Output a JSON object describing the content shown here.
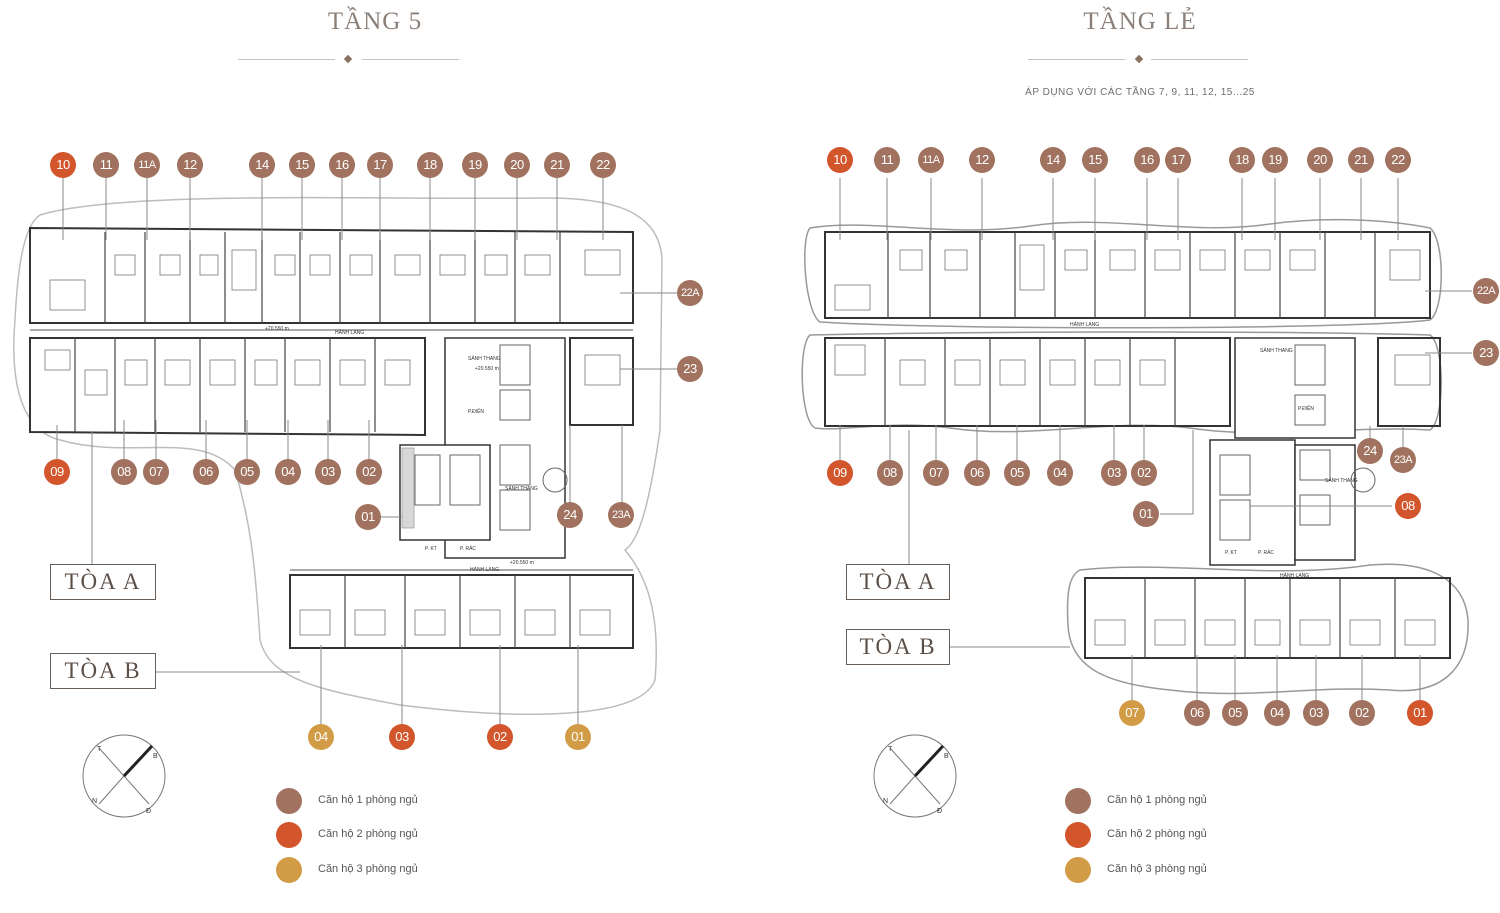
{
  "colors": {
    "one_bedroom": "#a0725f",
    "two_bedroom": "#d2552b",
    "three_bedroom": "#d29c46",
    "title": "#8b7f78",
    "plan_lines": "#3a3a3a",
    "outline": "#b8b8b8"
  },
  "left": {
    "title": "TẦNG 5",
    "tower_a": "TÒA A",
    "tower_b": "TÒA B",
    "plan_labels": {
      "corridor_a": "HÀNH LANG",
      "corridor_b": "HÀNH LANG",
      "lift_lobby": "SẢNH THANG",
      "lift_lobby_2": "SẢNH THANG",
      "kt": "P. KT",
      "rac": "P. RÁC",
      "dien": "P.ĐIỆN",
      "elev_1": "+20.550 m",
      "elev_2": "+20.550 m",
      "elev_3": "+20.550 m"
    },
    "units_a_top": [
      "10",
      "11",
      "11A",
      "12",
      "14",
      "15",
      "16",
      "17",
      "18",
      "19",
      "20",
      "21",
      "22"
    ],
    "units_a_right": [
      "22A",
      "23"
    ],
    "units_a_bottom": [
      "09",
      "08",
      "07",
      "06",
      "05",
      "04",
      "03",
      "02"
    ],
    "units_a_core": [
      "01",
      "24",
      "23A"
    ],
    "units_b": [
      "04",
      "03",
      "02",
      "01"
    ]
  },
  "right": {
    "title": "TẦNG LẺ",
    "subtitle": "ÁP DỤNG VỚI CÁC TẦNG 7, 9, 11, 12, 15...25",
    "tower_a": "TÒA A",
    "tower_b": "TÒA B",
    "plan_labels": {
      "corridor_a": "HÀNH LANG",
      "corridor_b": "HÀNH LANG",
      "lift_lobby": "SẢNH THANG",
      "lift_lobby_2": "SẢNH THANG",
      "kt": "P. KT",
      "rac": "P. RÁC",
      "dien": "P.ĐIỆN"
    },
    "units_a_top": [
      "10",
      "11",
      "11A",
      "12",
      "14",
      "15",
      "16",
      "17",
      "18",
      "19",
      "20",
      "21",
      "22"
    ],
    "units_a_right": [
      "22A",
      "23"
    ],
    "units_a_bottom": [
      "09",
      "08",
      "07",
      "06",
      "05",
      "04",
      "03",
      "02"
    ],
    "units_a_core": [
      "01",
      "08",
      "24",
      "23A"
    ],
    "units_b": [
      "07",
      "06",
      "05",
      "04",
      "03",
      "02",
      "01"
    ]
  },
  "compass": {
    "n": "N",
    "t": "T",
    "b": "B",
    "d": "Đ"
  },
  "legend": [
    {
      "label": "Căn hộ 1 phòng ngủ",
      "color": "#a0725f"
    },
    {
      "label": "Căn hộ 2 phòng ngủ",
      "color": "#d2552b"
    },
    {
      "label": "Căn hộ 3 phòng ngủ",
      "color": "#d29c46"
    }
  ]
}
